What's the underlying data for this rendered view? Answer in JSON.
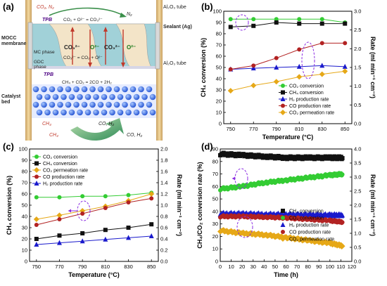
{
  "panels": {
    "a": {
      "label": "(a)",
      "texts": {
        "co2n2": "CO₂, N₂",
        "n2": "N₂",
        "al_top": "Al₂O₃ tube",
        "al_bottom": "Al₂O₃ tube",
        "tpb_top": "TPB",
        "tpb_bottom": "TPB",
        "rxn_top": "CO₂ + O²⁻ = CO₃²⁻",
        "rxn_mid": "CO₃²⁻ = CO₂ + O²⁻",
        "rxn_bottom": "CH₄ + CO₂ = 2CO + 2H₂",
        "sealant": "Sealant (Ag)",
        "mocc": "MOCC",
        "membrane": "membrane",
        "mc_phase": "MC phase",
        "gdc": "GDC",
        "phase": "phase",
        "co3_left": "CO₃²⁻",
        "o2_left": "O²⁻",
        "co3_right": "CO₃²⁻",
        "o2_right": "O²⁻",
        "catalyst": "Catalyst",
        "bed": "bed",
        "ch4_in": "CH₄",
        "ch4_feed": "CH₄",
        "co_h2_in": "CO, H₂",
        "co_h2_out": "CO, H₂"
      }
    },
    "b": {
      "label": "(b)"
    },
    "c": {
      "label": "(c)"
    },
    "d": {
      "label": "(d)"
    }
  },
  "colors": {
    "co2_conversion": "#33cc33",
    "ch4_conversion": "#111111",
    "h2_rate": "#1a1acc",
    "co_rate": "#b22222",
    "co2_perm": "#e6a817",
    "annotation": "#8a2be2",
    "membrane_blue": "#5bc0de",
    "tube": "#e8c07a"
  },
  "chart_data": [
    {
      "panel": "b",
      "type": "line",
      "x": [
        750,
        770,
        790,
        810,
        830,
        850
      ],
      "xlabel": "Temperature (°C)",
      "ylabel_left": "CH₄ conversion (%)",
      "ylabel_right": "Rate (ml min⁻¹ cm⁻²)",
      "ylim_left": [
        0,
        100
      ],
      "yticks_left": [
        0,
        10,
        20,
        30,
        40,
        50,
        60,
        70,
        80,
        90,
        100
      ],
      "ylim_right": [
        0,
        3.0
      ],
      "yticks_right": [
        0,
        0.5,
        1.0,
        1.5,
        2.0,
        2.5,
        3.0
      ],
      "series": [
        {
          "name": "CO₂ conversion",
          "axis": "left",
          "values": [
            93,
            93,
            93,
            93,
            93,
            90
          ]
        },
        {
          "name": "CH₄ conversion",
          "axis": "left",
          "values": [
            86,
            87,
            90,
            89,
            89,
            89
          ]
        },
        {
          "name": "H₂ production rate",
          "axis": "right",
          "values": [
            1.45,
            1.48,
            1.5,
            1.52,
            1.55,
            1.52
          ]
        },
        {
          "name": "CO production rate",
          "axis": "right",
          "values": [
            1.45,
            1.55,
            1.75,
            1.98,
            2.15,
            2.15
          ]
        },
        {
          "name": "CO₂ permeation rate",
          "axis": "right",
          "values": [
            0.88,
            1.02,
            1.12,
            1.25,
            1.32,
            1.4
          ]
        }
      ],
      "legend": "right-middle"
    },
    {
      "panel": "c",
      "type": "line",
      "x": [
        750,
        770,
        790,
        810,
        830,
        850
      ],
      "xlabel": "Temperature (°C)",
      "ylabel_left": "CH₄ conversion (%)",
      "ylabel_right": "Rate (ml min⁻¹ cm⁻²)",
      "ylim_left": [
        0,
        100
      ],
      "yticks_left": [
        0,
        10,
        20,
        30,
        40,
        50,
        60,
        70,
        80,
        90,
        100
      ],
      "ylim_right": [
        0,
        2.0
      ],
      "yticks_right": [
        0,
        0.2,
        0.4,
        0.6,
        0.8,
        1.0,
        1.2,
        1.4,
        1.6,
        1.8,
        2.0
      ],
      "series": [
        {
          "name": "CO₂ conversion",
          "axis": "left",
          "values": [
            57,
            57,
            58,
            58,
            59,
            61
          ]
        },
        {
          "name": "CH₄ conversion",
          "axis": "left",
          "values": [
            20,
            23,
            25,
            28,
            30,
            33
          ]
        },
        {
          "name": "CO₂ permeation rate",
          "axis": "right",
          "values": [
            0.75,
            0.82,
            0.9,
            0.98,
            1.08,
            1.2
          ]
        },
        {
          "name": "CO production rate",
          "axis": "right",
          "values": [
            0.65,
            0.75,
            0.85,
            0.95,
            1.05,
            1.12
          ]
        },
        {
          "name": "H₂ production rate",
          "axis": "right",
          "values": [
            0.3,
            0.33,
            0.36,
            0.39,
            0.42,
            0.45
          ]
        }
      ],
      "legend": "top-left"
    },
    {
      "panel": "d",
      "type": "scatter",
      "xlabel": "Time (h)",
      "ylabel_left": "CH₄/CO₂ conversion rate (%)",
      "ylabel_right": "Rate (ml min⁻¹ cm⁻²)",
      "xlim": [
        0,
        120
      ],
      "xticks": [
        0,
        10,
        20,
        30,
        40,
        50,
        60,
        70,
        80,
        90,
        100,
        110,
        120
      ],
      "ylim_left": [
        0,
        90
      ],
      "yticks_left": [
        0,
        10,
        20,
        30,
        40,
        50,
        60,
        70,
        80,
        90
      ],
      "ylim_right": [
        0,
        4.0
      ],
      "yticks_right": [
        0,
        0.5,
        1.0,
        1.5,
        2.0,
        2.5,
        3.0,
        3.5,
        4.0
      ],
      "series": [
        {
          "name": "CH₄ conversion",
          "axis": "left",
          "x": [
            0,
            20,
            40,
            60,
            80,
            100,
            112
          ],
          "values": [
            86,
            85,
            84,
            83,
            83,
            83,
            83
          ]
        },
        {
          "name": "CO₂ conversion",
          "axis": "left",
          "x": [
            0,
            20,
            40,
            60,
            80,
            100,
            112
          ],
          "values": [
            58,
            60,
            63,
            65,
            67,
            69,
            70
          ]
        },
        {
          "name": "H₂ production rate",
          "axis": "right",
          "x": [
            0,
            20,
            40,
            60,
            80,
            100,
            112
          ],
          "values": [
            1.7,
            1.7,
            1.68,
            1.67,
            1.66,
            1.65,
            1.65
          ]
        },
        {
          "name": "CO production rate",
          "axis": "right",
          "x": [
            0,
            20,
            40,
            60,
            80,
            100,
            112
          ],
          "values": [
            1.6,
            1.6,
            1.58,
            1.55,
            1.5,
            1.45,
            1.4
          ]
        },
        {
          "name": "CO₂ permeation rate",
          "axis": "right",
          "x": [
            0,
            20,
            40,
            60,
            80,
            100,
            112
          ],
          "values": [
            1.1,
            1.0,
            0.95,
            0.85,
            0.75,
            0.65,
            0.55
          ]
        }
      ],
      "legend": "bottom-right"
    }
  ]
}
